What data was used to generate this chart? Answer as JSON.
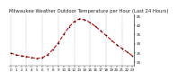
{
  "title": "Milwaukee Weather Outdoor Temperature per Hour (Last 24 Hours)",
  "hours": [
    0,
    1,
    2,
    3,
    4,
    5,
    6,
    7,
    8,
    9,
    10,
    11,
    12,
    13,
    14,
    15,
    16,
    17,
    18,
    19,
    20,
    21,
    22,
    23
  ],
  "temps": [
    25.0,
    24.0,
    23.5,
    23.0,
    22.5,
    22.0,
    22.5,
    24.0,
    27.0,
    30.5,
    35.0,
    39.0,
    42.0,
    43.5,
    43.0,
    41.5,
    39.5,
    37.0,
    34.5,
    32.0,
    29.5,
    27.5,
    25.5,
    23.5
  ],
  "line_color": "#cc0000",
  "marker_color": "#111111",
  "bg_color": "#ffffff",
  "grid_color": "#888888",
  "ylim": [
    18,
    46
  ],
  "yticks": [
    20,
    25,
    30,
    35,
    40,
    45
  ],
  "ytick_labels": [
    "20",
    "25",
    "30",
    "35",
    "40",
    "45"
  ],
  "title_fontsize": 3.8,
  "tick_fontsize": 3.0,
  "line_width": 0.8,
  "marker_size": 1.8
}
